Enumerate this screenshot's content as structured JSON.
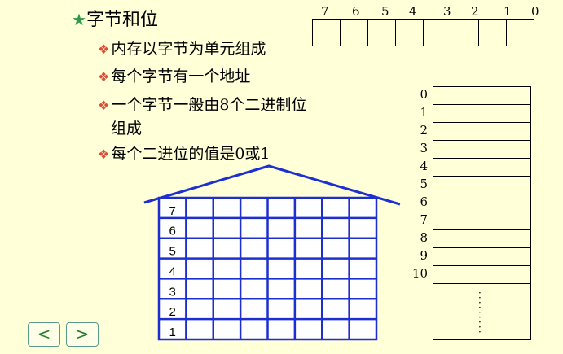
{
  "title": {
    "icon": "star-icon",
    "text": "字节和位"
  },
  "bullets": [
    {
      "icon": "diamond-bullet-icon",
      "text": "内存以字节为单元组成"
    },
    {
      "icon": "diamond-bullet-icon",
      "text": "每个字节有一个地址"
    },
    {
      "icon": "diamond-bullet-icon",
      "text": "一个字节一般由8个二进制位",
      "continuation": "组成"
    },
    {
      "icon": "diamond-bullet-icon",
      "text": "每个二进位的值是0或1"
    }
  ],
  "byte_bits": [
    "7",
    "6",
    "5",
    "4",
    "3",
    "2",
    "1",
    "0"
  ],
  "memory_addresses": [
    "0",
    "1",
    "2",
    "3",
    "4",
    "5",
    "6",
    "7",
    "8",
    "9",
    "10"
  ],
  "memory_ellipsis": "⋮",
  "house_rows": [
    "7",
    "6",
    "5",
    "4",
    "3",
    "2",
    "1"
  ],
  "nav": {
    "prev": "<",
    "next": ">"
  },
  "colors": {
    "background": "#FFFFD8",
    "grid": "#1E2FD0",
    "star": "#2E9A4A",
    "bullet": "#D9503A"
  }
}
